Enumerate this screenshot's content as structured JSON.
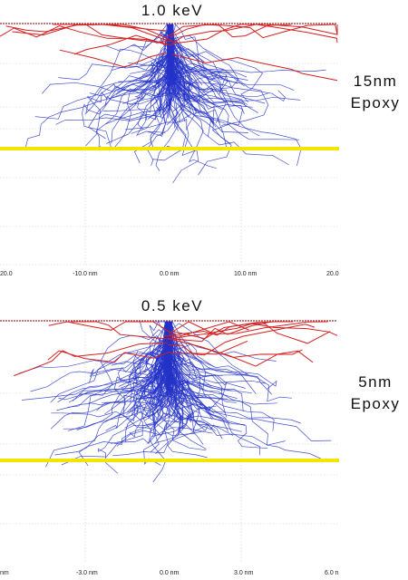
{
  "panels": [
    {
      "title": "1.0 keV",
      "film_thickness": "15nm",
      "film_material": "Epoxy",
      "axis_ticks": [
        "20.0",
        "-10.0 nm",
        "0.0 nm",
        "10.0 nm",
        "20.0"
      ],
      "colors": {
        "incident_electrons": "#2432c8",
        "backscattered": "#d42020",
        "interface_line": "#f2e600",
        "surface": "#b05050"
      }
    },
    {
      "title": "0.5 keV",
      "film_thickness": "5nm",
      "film_material": "Epoxy",
      "axis_ticks": [
        "nm",
        "-3.0 nm",
        "0.0 nm",
        "3.0 nm",
        "6.0 n"
      ],
      "colors": {
        "incident_electrons": "#2432c8",
        "backscattered": "#d42020",
        "interface_line": "#f2e600",
        "surface": "#b05050"
      }
    }
  ]
}
